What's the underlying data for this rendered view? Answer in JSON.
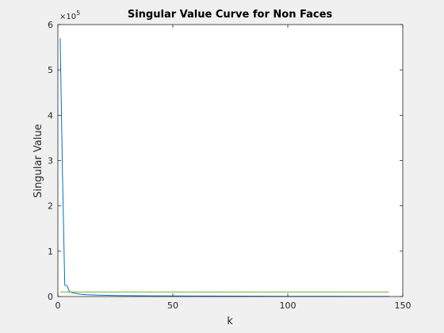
{
  "chart_data": {
    "type": "line",
    "title": "Singular Value Curve for Non Faces",
    "xlabel": "k",
    "ylabel": "Singular Value",
    "xlim": [
      0,
      150
    ],
    "ylim": [
      0,
      600000
    ],
    "x_ticks": [
      0,
      50,
      100,
      150
    ],
    "y_ticks": [
      0,
      1,
      2,
      3,
      4,
      5,
      6
    ],
    "y_exponent_label": "×10",
    "y_exponent_power": "5",
    "grid": false,
    "series": [
      {
        "color": "#0072bd",
        "x": [
          1,
          2,
          3,
          4,
          5,
          6,
          8,
          10,
          12,
          15,
          20,
          25,
          30,
          40,
          50,
          60,
          80,
          100,
          120,
          144
        ],
        "values": [
          570000,
          270000,
          25000,
          24000,
          11000,
          9000,
          6500,
          5000,
          4200,
          3500,
          2800,
          2300,
          2000,
          1600,
          1300,
          1100,
          800,
          600,
          400,
          100
        ]
      },
      {
        "color": "#77ac30",
        "x": [
          1,
          144
        ],
        "values": [
          10000,
          10000
        ]
      }
    ]
  }
}
